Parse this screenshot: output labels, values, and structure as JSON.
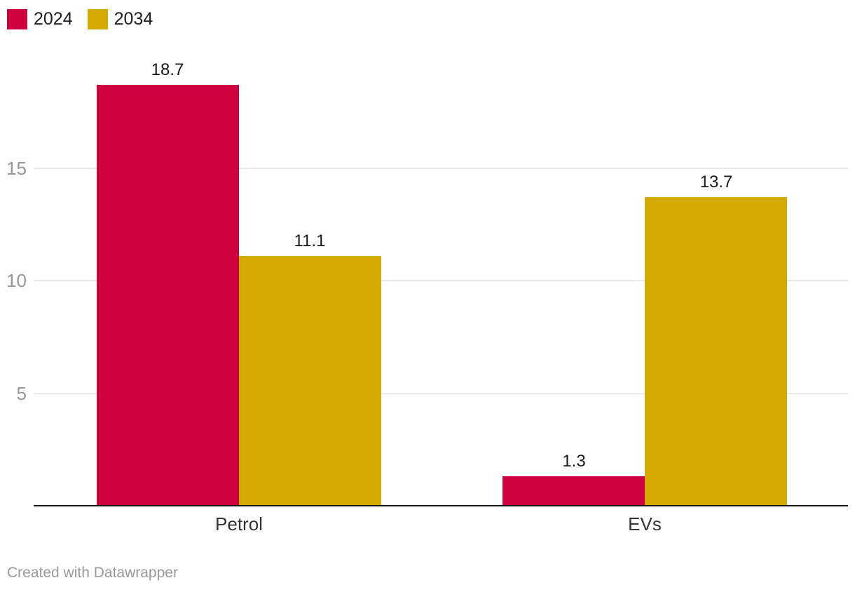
{
  "legend": {
    "items": [
      {
        "label": "2024",
        "color": "#ce0040"
      },
      {
        "label": "2034",
        "color": "#d4aa00"
      }
    ]
  },
  "footer": {
    "credit_text": "Created with Datawrapper"
  },
  "chart_data": {
    "type": "bar",
    "categories": [
      "Petrol",
      "EVs"
    ],
    "series": [
      {
        "name": "2024",
        "color": "#ce0040",
        "values": [
          18.7,
          1.3
        ]
      },
      {
        "name": "2034",
        "color": "#d4aa00",
        "values": [
          11.1,
          13.7
        ]
      }
    ],
    "value_labels": [
      [
        "18.7",
        "1.3"
      ],
      [
        "11.1",
        "13.7"
      ]
    ],
    "title": "",
    "xlabel": "",
    "ylabel": "",
    "yticks": [
      5,
      10,
      15
    ],
    "ylim": [
      0,
      18.7
    ],
    "grid": "horizontal",
    "legend_position": "top-left",
    "colors": {
      "gridline": "#e8e8e8",
      "axis_line": "#141414",
      "tick_label": "#979797",
      "value_label": "#1a1a1a",
      "category_label": "#333333"
    }
  }
}
